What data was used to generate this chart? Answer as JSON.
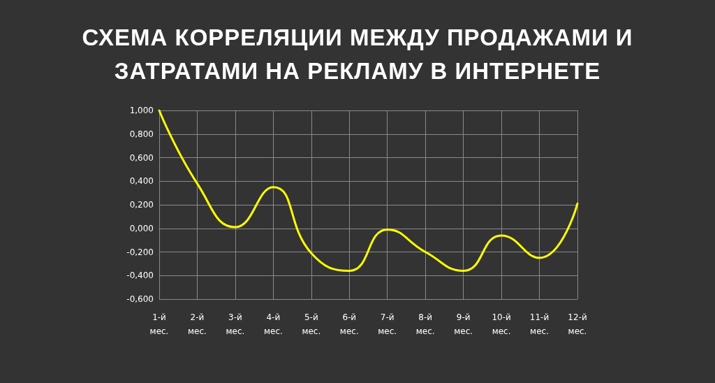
{
  "chart_data": {
    "type": "line",
    "title": "СХЕМА КОРРЕЛЯЦИИ МЕЖДУ ПРОДАЖАМИ И ЗАТРАТАМИ НА РЕКЛАМУ В ИНТЕРНЕТЕ",
    "categories": [
      "1-й мес.",
      "2-й мес.",
      "3-й мес.",
      "4-й мес.",
      "5-й мес.",
      "6-й мес.",
      "7-й мес.",
      "8-й мес.",
      "9-й мес.",
      "10-й мес.",
      "11-й мес.",
      "12-й мес."
    ],
    "series": [
      {
        "color": "#ffff00",
        "values": [
          1.0,
          0.38,
          0.01,
          0.35,
          -0.21,
          -0.36,
          -0.01,
          -0.2,
          -0.36,
          -0.06,
          -0.25,
          0.21
        ]
      }
    ],
    "ylim": [
      -0.6,
      1.0
    ],
    "yticks": [
      {
        "value": -0.6,
        "label": "-0,600"
      },
      {
        "value": -0.4,
        "label": "-0,400"
      },
      {
        "value": -0.2,
        "label": "-0,200"
      },
      {
        "value": 0,
        "label": "0,000"
      },
      {
        "value": 0.2,
        "label": "0,200"
      },
      {
        "value": 0.4,
        "label": "0,400"
      },
      {
        "value": 0.6,
        "label": "0,600"
      },
      {
        "value": 0.8,
        "label": "0,800"
      },
      {
        "value": 1.0,
        "label": "1,000"
      }
    ],
    "grid": true,
    "marker": "none",
    "line_style": "solid"
  }
}
